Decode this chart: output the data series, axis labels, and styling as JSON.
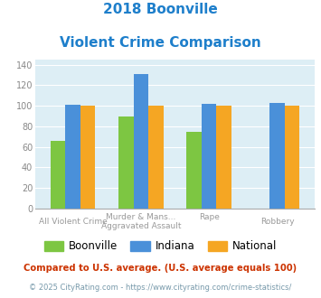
{
  "title_line1": "2018 Boonville",
  "title_line2": "Violent Crime Comparison",
  "title_color": "#1e7fcb",
  "boonville_values": [
    66,
    90,
    75,
    0
  ],
  "indiana_values": [
    101,
    131,
    102,
    103
  ],
  "national_values": [
    100,
    100,
    100,
    100
  ],
  "bar_color_boonville": "#7dc642",
  "bar_color_indiana": "#4a90d9",
  "bar_color_national": "#f5a623",
  "ylim": [
    0,
    145
  ],
  "yticks": [
    0,
    20,
    40,
    60,
    80,
    100,
    120,
    140
  ],
  "bg_color": "#ddeef5",
  "cat_labels_top": [
    "",
    "Murder & Mans...",
    "Rape",
    ""
  ],
  "cat_labels_bot": [
    "All Violent Crime",
    "Aggravated Assault",
    "",
    "Robbery"
  ],
  "legend_labels": [
    "Boonville",
    "Indiana",
    "National"
  ],
  "footnote1": "Compared to U.S. average. (U.S. average equals 100)",
  "footnote2": "© 2025 CityRating.com - https://www.cityrating.com/crime-statistics/",
  "footnote1_color": "#cc3300",
  "footnote2_color": "#7799aa"
}
